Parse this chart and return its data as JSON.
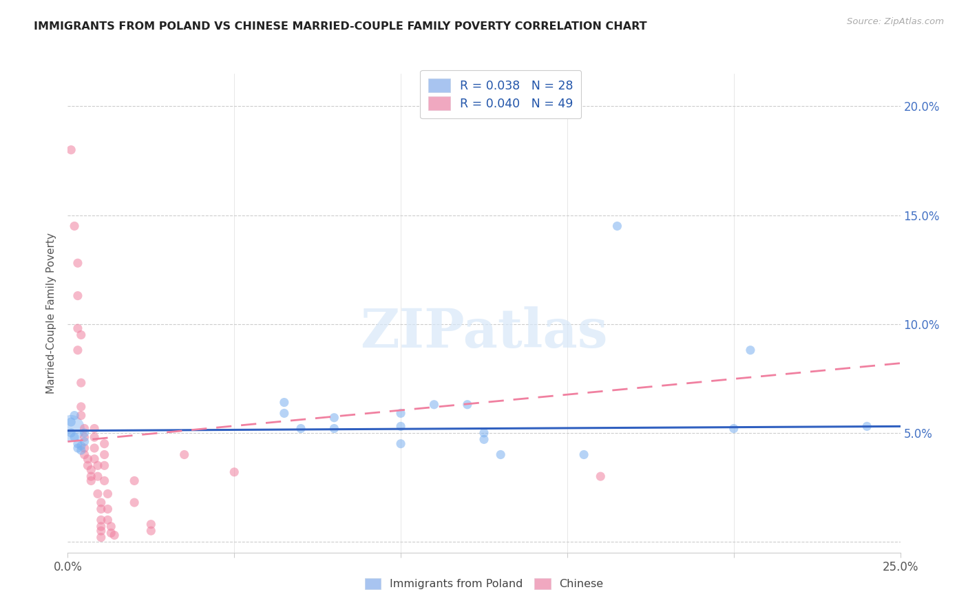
{
  "title": "IMMIGRANTS FROM POLAND VS CHINESE MARRIED-COUPLE FAMILY POVERTY CORRELATION CHART",
  "source": "Source: ZipAtlas.com",
  "ylabel": "Married-Couple Family Poverty",
  "xlim": [
    0.0,
    0.25
  ],
  "ylim": [
    -0.005,
    0.215
  ],
  "xticks": [
    0.0,
    0.05,
    0.1,
    0.15,
    0.2,
    0.25
  ],
  "xticklabels": [
    "0.0%",
    "",
    "",
    "",
    "",
    "25.0%"
  ],
  "yticks": [
    0.0,
    0.05,
    0.1,
    0.15,
    0.2
  ],
  "yticklabels_right": [
    "",
    "5.0%",
    "10.0%",
    "15.0%",
    "20.0%"
  ],
  "legend_entries": [
    {
      "label": "R = 0.038   N = 28",
      "color": "#a8c4f0"
    },
    {
      "label": "R = 0.040   N = 49",
      "color": "#f0a8c0"
    }
  ],
  "poland_color": "#7ab0f0",
  "chinese_color": "#f080a0",
  "poland_trend_color": "#3060c0",
  "chinese_trend_color": "#f080a0",
  "watermark": "ZIPatlas",
  "poland_trend_x0": 0.0,
  "poland_trend_y0": 0.051,
  "poland_trend_x1": 0.25,
  "poland_trend_y1": 0.053,
  "chinese_trend_x0": 0.0,
  "chinese_trend_y0": 0.046,
  "chinese_trend_x1": 0.25,
  "chinese_trend_y1": 0.082,
  "poland_points": [
    [
      0.001,
      0.055
    ],
    [
      0.001,
      0.05
    ],
    [
      0.002,
      0.058
    ],
    [
      0.002,
      0.048
    ],
    [
      0.003,
      0.045
    ],
    [
      0.003,
      0.043
    ],
    [
      0.004,
      0.044
    ],
    [
      0.004,
      0.042
    ],
    [
      0.005,
      0.046
    ],
    [
      0.005,
      0.05
    ],
    [
      0.065,
      0.064
    ],
    [
      0.065,
      0.059
    ],
    [
      0.07,
      0.052
    ],
    [
      0.08,
      0.057
    ],
    [
      0.08,
      0.052
    ],
    [
      0.1,
      0.059
    ],
    [
      0.1,
      0.053
    ],
    [
      0.1,
      0.045
    ],
    [
      0.11,
      0.063
    ],
    [
      0.12,
      0.063
    ],
    [
      0.125,
      0.05
    ],
    [
      0.125,
      0.047
    ],
    [
      0.13,
      0.04
    ],
    [
      0.155,
      0.04
    ],
    [
      0.165,
      0.145
    ],
    [
      0.2,
      0.052
    ],
    [
      0.205,
      0.088
    ],
    [
      0.24,
      0.053
    ]
  ],
  "poland_big_cluster": [
    0.001,
    0.052,
    800
  ],
  "chinese_points": [
    [
      0.001,
      0.18
    ],
    [
      0.002,
      0.145
    ],
    [
      0.003,
      0.128
    ],
    [
      0.003,
      0.113
    ],
    [
      0.003,
      0.098
    ],
    [
      0.003,
      0.088
    ],
    [
      0.004,
      0.095
    ],
    [
      0.004,
      0.073
    ],
    [
      0.004,
      0.062
    ],
    [
      0.004,
      0.058
    ],
    [
      0.005,
      0.052
    ],
    [
      0.005,
      0.048
    ],
    [
      0.005,
      0.043
    ],
    [
      0.005,
      0.04
    ],
    [
      0.006,
      0.038
    ],
    [
      0.006,
      0.035
    ],
    [
      0.007,
      0.033
    ],
    [
      0.007,
      0.03
    ],
    [
      0.007,
      0.028
    ],
    [
      0.008,
      0.052
    ],
    [
      0.008,
      0.048
    ],
    [
      0.008,
      0.043
    ],
    [
      0.008,
      0.038
    ],
    [
      0.009,
      0.035
    ],
    [
      0.009,
      0.03
    ],
    [
      0.009,
      0.022
    ],
    [
      0.01,
      0.018
    ],
    [
      0.01,
      0.015
    ],
    [
      0.01,
      0.01
    ],
    [
      0.01,
      0.007
    ],
    [
      0.01,
      0.005
    ],
    [
      0.01,
      0.002
    ],
    [
      0.011,
      0.045
    ],
    [
      0.011,
      0.04
    ],
    [
      0.011,
      0.035
    ],
    [
      0.011,
      0.028
    ],
    [
      0.012,
      0.022
    ],
    [
      0.012,
      0.015
    ],
    [
      0.012,
      0.01
    ],
    [
      0.013,
      0.007
    ],
    [
      0.013,
      0.004
    ],
    [
      0.014,
      0.003
    ],
    [
      0.02,
      0.028
    ],
    [
      0.02,
      0.018
    ],
    [
      0.025,
      0.008
    ],
    [
      0.025,
      0.005
    ],
    [
      0.035,
      0.04
    ],
    [
      0.05,
      0.032
    ],
    [
      0.16,
      0.03
    ]
  ]
}
